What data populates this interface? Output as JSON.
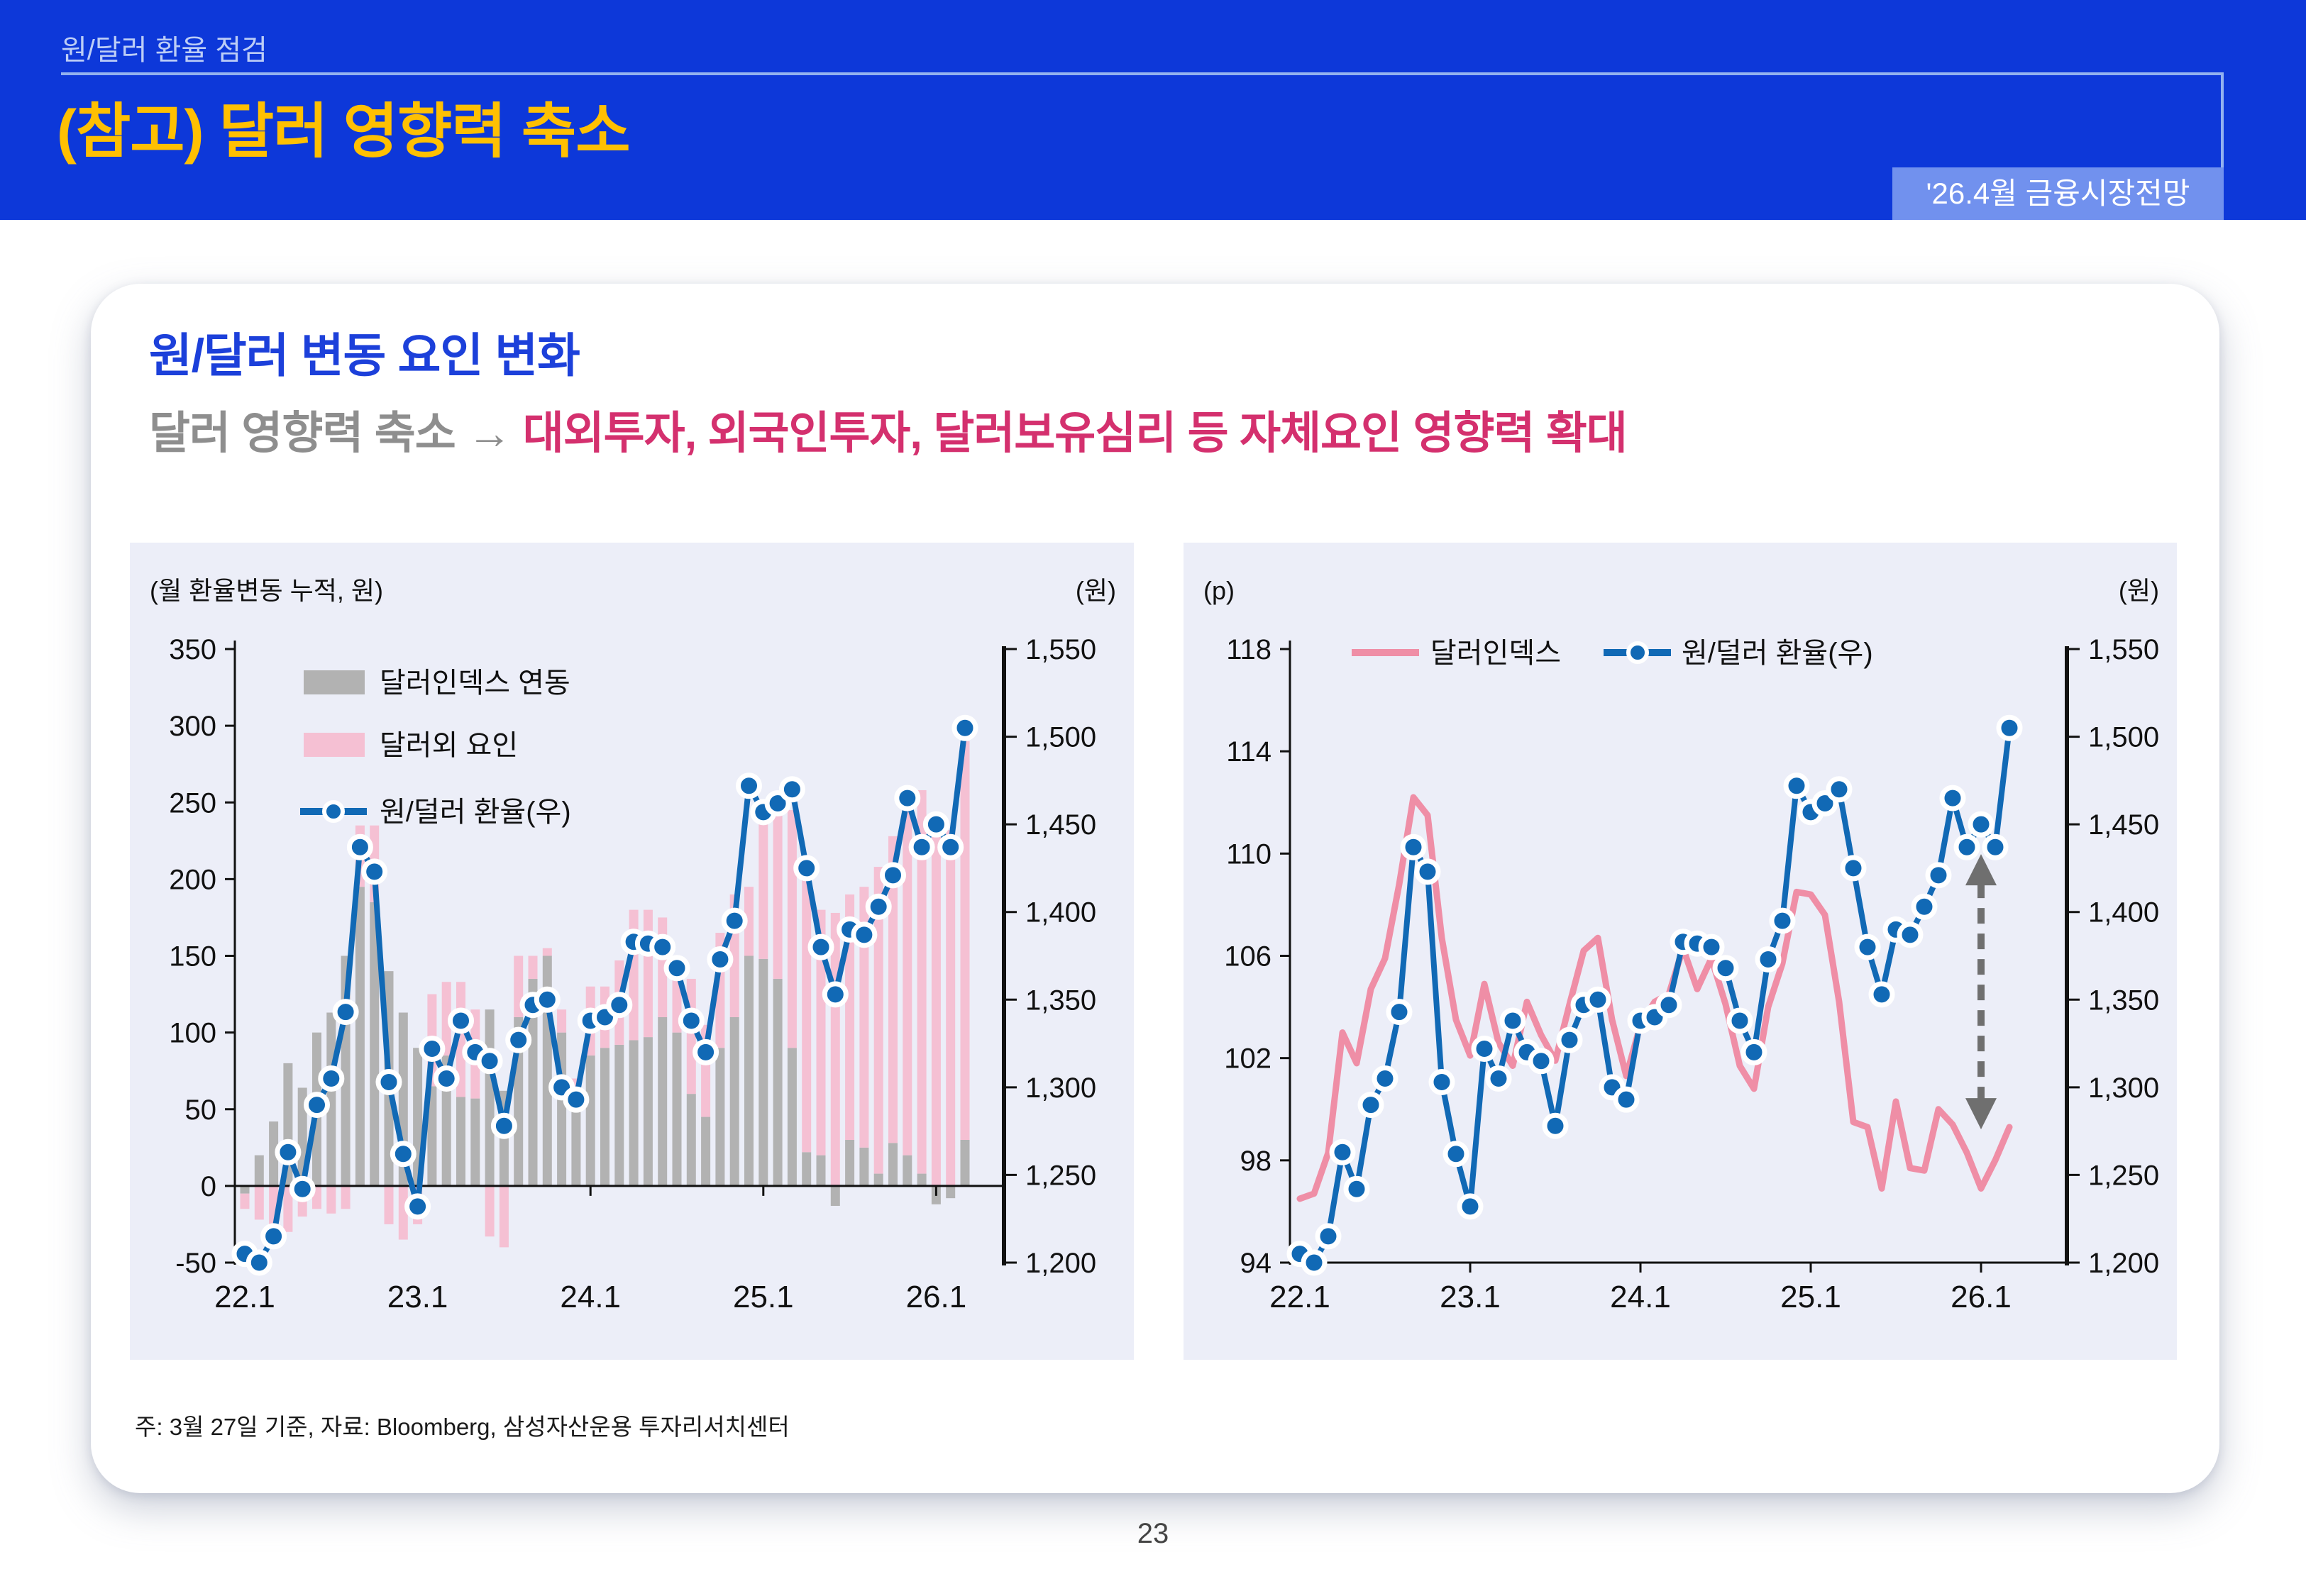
{
  "page": {
    "page_number": "23"
  },
  "banner": {
    "kicker": "원/달러 환율 점검",
    "title": "(참고) 달러 영향력 축소",
    "badge": "'26.4월 금융시장전망"
  },
  "card": {
    "title": "원/달러 변동 요인 변화",
    "subtitle_prefix": "달러 영향력 축소 → ",
    "subtitle_emphasis": "대외투자, 외국인투자, 달러보유심리 등 자체요인 영향력 확대"
  },
  "note": "주: 3월 27일 기준, 자료: Bloomberg, 삼성자산운용 투자리서치센터",
  "colors": {
    "banner_bg": "#0d38d9",
    "banner_title": "#ffc002",
    "banner_kicker": "#bccdf6",
    "rule": "#93b2ef",
    "badge_bg": "#7191ee",
    "card_title_blue": "#1c40da",
    "subtitle_gray": "#8e8e8e",
    "subtitle_accent": "#d4306e",
    "panel_bg": "#eceef8",
    "bar_gray": "#b2b2b2",
    "bar_pink": "#f5c0d3",
    "line_blue": "#1169b5",
    "line_pink": "#ef8ea6",
    "axis": "#111111",
    "arrow_gray": "#6f6f6f"
  },
  "chart_data": [
    {
      "type": "bar",
      "title": "",
      "unit_left": "(월 환율변동 누적, 원)",
      "unit_right": "(원)",
      "legend_position": "top-left-vertical",
      "left_axis": {
        "min": -50,
        "max": 350,
        "step": 50
      },
      "right_axis": {
        "min": 1200,
        "max": 1550,
        "step": 50
      },
      "x_tick_labels": [
        "22.1",
        "23.1",
        "24.1",
        "25.1",
        "26.1"
      ],
      "x_tick_indices": [
        0,
        12,
        24,
        36,
        48
      ],
      "categories": [
        "22.1",
        "22.2",
        "22.3",
        "22.4",
        "22.5",
        "22.6",
        "22.7",
        "22.8",
        "22.9",
        "22.10",
        "22.11",
        "22.12",
        "23.1",
        "23.2",
        "23.3",
        "23.4",
        "23.5",
        "23.6",
        "23.7",
        "23.8",
        "23.9",
        "23.10",
        "23.11",
        "23.12",
        "24.1",
        "24.2",
        "24.3",
        "24.4",
        "24.5",
        "24.6",
        "24.7",
        "24.8",
        "24.9",
        "24.10",
        "24.11",
        "24.12",
        "25.1",
        "25.2",
        "25.3",
        "25.4",
        "25.5",
        "25.6",
        "25.7",
        "25.8",
        "25.9",
        "25.10",
        "25.11",
        "25.12",
        "26.1",
        "26.2",
        "26.3"
      ],
      "series": [
        {
          "name": "달러인덱스 연동",
          "type": "bar",
          "axis": "left",
          "color": "#b2b2b2",
          "values": [
            -5,
            20,
            42,
            80,
            64,
            100,
            113,
            150,
            195,
            185,
            140,
            113,
            90,
            65,
            85,
            58,
            57,
            115,
            62,
            110,
            135,
            150,
            100,
            60,
            85,
            90,
            92,
            95,
            97,
            110,
            100,
            60,
            45,
            90,
            110,
            150,
            148,
            135,
            90,
            22,
            20,
            -13,
            30,
            25,
            8,
            28,
            20,
            8,
            -12,
            -8,
            30
          ]
        },
        {
          "name": "달러외 요인",
          "type": "bar",
          "axis": "left",
          "color": "#f5c0d3",
          "values": [
            -10,
            -22,
            -28,
            -30,
            -20,
            -15,
            -18,
            -15,
            40,
            50,
            -25,
            -35,
            -25,
            60,
            48,
            75,
            58,
            -33,
            -40,
            40,
            15,
            5,
            15,
            10,
            45,
            40,
            55,
            85,
            83,
            65,
            35,
            75,
            60,
            75,
            80,
            45,
            95,
            110,
            155,
            185,
            160,
            178,
            160,
            170,
            200,
            200,
            235,
            250,
            230,
            232,
            260
          ]
        },
        {
          "name": "원/덜러 환율(우)",
          "type": "line",
          "axis": "right",
          "color": "#1169b5",
          "values": [
            1205,
            1200,
            1215,
            1263,
            1242,
            1290,
            1305,
            1343,
            1437,
            1423,
            1303,
            1262,
            1232,
            1322,
            1305,
            1338,
            1320,
            1315,
            1278,
            1327,
            1347,
            1350,
            1300,
            1293,
            1338,
            1340,
            1347,
            1383,
            1382,
            1380,
            1368,
            1338,
            1320,
            1373,
            1395,
            1472,
            1457,
            1462,
            1470,
            1425,
            1380,
            1353,
            1390,
            1387,
            1403,
            1421,
            1465,
            1437,
            1450,
            1437,
            1505
          ]
        }
      ]
    },
    {
      "type": "line",
      "title": "",
      "unit_left": "(p)",
      "unit_right": "(원)",
      "legend_position": "top-horizontal",
      "left_axis": {
        "min": 94,
        "max": 118,
        "step": 4
      },
      "right_axis": {
        "min": 1200,
        "max": 1550,
        "step": 50
      },
      "x_tick_labels": [
        "22.1",
        "23.1",
        "24.1",
        "25.1",
        "26.1"
      ],
      "x_tick_indices": [
        0,
        12,
        24,
        36,
        48
      ],
      "categories": [
        "22.1",
        "22.2",
        "22.3",
        "22.4",
        "22.5",
        "22.6",
        "22.7",
        "22.8",
        "22.9",
        "22.10",
        "22.11",
        "22.12",
        "23.1",
        "23.2",
        "23.3",
        "23.4",
        "23.5",
        "23.6",
        "23.7",
        "23.8",
        "23.9",
        "23.10",
        "23.11",
        "23.12",
        "24.1",
        "24.2",
        "24.3",
        "24.4",
        "24.5",
        "24.6",
        "24.7",
        "24.8",
        "24.9",
        "24.10",
        "24.11",
        "24.12",
        "25.1",
        "25.2",
        "25.3",
        "25.4",
        "25.5",
        "25.6",
        "25.7",
        "25.8",
        "25.9",
        "25.10",
        "25.11",
        "25.12",
        "26.1",
        "26.2",
        "26.3"
      ],
      "series": [
        {
          "name": "달러인덱스",
          "type": "line",
          "axis": "left",
          "color": "#ef8ea6",
          "values": [
            96.5,
            96.7,
            98.3,
            103.0,
            101.8,
            104.7,
            105.9,
            108.8,
            112.2,
            111.5,
            106.7,
            103.5,
            102.1,
            104.9,
            102.6,
            101.7,
            104.2,
            102.9,
            101.9,
            104.1,
            106.2,
            106.7,
            103.5,
            101.3,
            103.3,
            104.2,
            104.5,
            106.3,
            104.7,
            105.9,
            104.1,
            101.7,
            100.8,
            104.0,
            105.7,
            108.5,
            108.4,
            107.6,
            104.2,
            99.5,
            99.3,
            96.9,
            100.3,
            97.7,
            97.6,
            100.0,
            99.4,
            98.3,
            96.9,
            98.0,
            99.3
          ]
        },
        {
          "name": "원/덜러 환율(우)",
          "type": "line-dots",
          "axis": "right",
          "color": "#1169b5",
          "values": [
            1205,
            1200,
            1215,
            1263,
            1242,
            1290,
            1305,
            1343,
            1437,
            1423,
            1303,
            1262,
            1232,
            1322,
            1305,
            1338,
            1320,
            1315,
            1278,
            1327,
            1347,
            1350,
            1300,
            1293,
            1338,
            1340,
            1347,
            1383,
            1382,
            1380,
            1368,
            1338,
            1320,
            1373,
            1395,
            1472,
            1457,
            1462,
            1470,
            1425,
            1380,
            1353,
            1390,
            1387,
            1403,
            1421,
            1465,
            1437,
            1450,
            1437,
            1505
          ]
        }
      ],
      "annotation_arrow": {
        "x_month": "26.1",
        "x_index": 48,
        "axis": "right",
        "from": 1276,
        "to": 1433,
        "style": "dashed-double-head"
      }
    }
  ]
}
